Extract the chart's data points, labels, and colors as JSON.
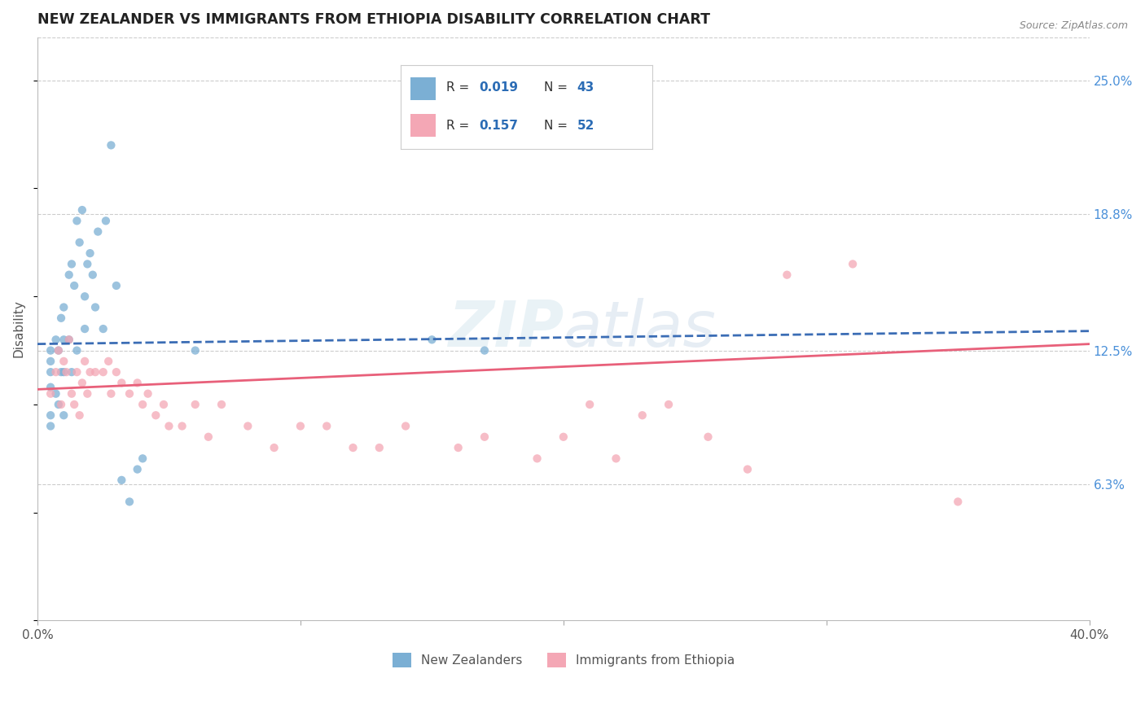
{
  "title": "NEW ZEALANDER VS IMMIGRANTS FROM ETHIOPIA DISABILITY CORRELATION CHART",
  "source": "Source: ZipAtlas.com",
  "ylabel": "Disability",
  "watermark": "ZIPAtlas",
  "nz_R": 0.019,
  "nz_N": 43,
  "eth_R": 0.157,
  "eth_N": 52,
  "x_min": 0.0,
  "x_max": 0.4,
  "y_min": 0.0,
  "y_max": 0.27,
  "y_ticks_right": [
    0.063,
    0.125,
    0.188,
    0.25
  ],
  "y_tick_labels_right": [
    "6.3%",
    "12.5%",
    "18.8%",
    "25.0%"
  ],
  "nz_color": "#7BAFD4",
  "eth_color": "#F4A7B5",
  "nz_line_color": "#3B6DB5",
  "eth_line_color": "#E8607A",
  "grid_color": "#CCCCCC",
  "background_color": "#FFFFFF",
  "legend_R_color": "#2B6CB5",
  "legend_N_color": "#2B6CB5",
  "nz_scatter_x": [
    0.005,
    0.005,
    0.005,
    0.005,
    0.005,
    0.005,
    0.007,
    0.007,
    0.008,
    0.008,
    0.009,
    0.009,
    0.01,
    0.01,
    0.01,
    0.01,
    0.012,
    0.012,
    0.013,
    0.013,
    0.014,
    0.015,
    0.015,
    0.016,
    0.017,
    0.018,
    0.018,
    0.019,
    0.02,
    0.021,
    0.022,
    0.023,
    0.025,
    0.026,
    0.028,
    0.03,
    0.032,
    0.035,
    0.038,
    0.04,
    0.06,
    0.15,
    0.17
  ],
  "nz_scatter_y": [
    0.125,
    0.12,
    0.115,
    0.108,
    0.095,
    0.09,
    0.13,
    0.105,
    0.125,
    0.1,
    0.14,
    0.115,
    0.145,
    0.13,
    0.115,
    0.095,
    0.16,
    0.13,
    0.165,
    0.115,
    0.155,
    0.185,
    0.125,
    0.175,
    0.19,
    0.15,
    0.135,
    0.165,
    0.17,
    0.16,
    0.145,
    0.18,
    0.135,
    0.185,
    0.22,
    0.155,
    0.065,
    0.055,
    0.07,
    0.075,
    0.125,
    0.13,
    0.125
  ],
  "eth_scatter_x": [
    0.005,
    0.007,
    0.008,
    0.009,
    0.01,
    0.011,
    0.012,
    0.013,
    0.014,
    0.015,
    0.016,
    0.017,
    0.018,
    0.019,
    0.02,
    0.022,
    0.025,
    0.027,
    0.028,
    0.03,
    0.032,
    0.035,
    0.038,
    0.04,
    0.042,
    0.045,
    0.048,
    0.05,
    0.055,
    0.06,
    0.065,
    0.07,
    0.08,
    0.09,
    0.1,
    0.11,
    0.12,
    0.13,
    0.14,
    0.16,
    0.17,
    0.19,
    0.2,
    0.21,
    0.22,
    0.23,
    0.24,
    0.255,
    0.27,
    0.285,
    0.31,
    0.35
  ],
  "eth_scatter_y": [
    0.105,
    0.115,
    0.125,
    0.1,
    0.12,
    0.115,
    0.13,
    0.105,
    0.1,
    0.115,
    0.095,
    0.11,
    0.12,
    0.105,
    0.115,
    0.115,
    0.115,
    0.12,
    0.105,
    0.115,
    0.11,
    0.105,
    0.11,
    0.1,
    0.105,
    0.095,
    0.1,
    0.09,
    0.09,
    0.1,
    0.085,
    0.1,
    0.09,
    0.08,
    0.09,
    0.09,
    0.08,
    0.08,
    0.09,
    0.08,
    0.085,
    0.075,
    0.085,
    0.1,
    0.075,
    0.095,
    0.1,
    0.085,
    0.07,
    0.16,
    0.165,
    0.055
  ],
  "nz_line_x0": 0.0,
  "nz_line_x1": 0.4,
  "nz_line_y0": 0.128,
  "nz_line_y1": 0.134,
  "eth_line_x0": 0.0,
  "eth_line_x1": 0.4,
  "eth_line_y0": 0.107,
  "eth_line_y1": 0.128
}
